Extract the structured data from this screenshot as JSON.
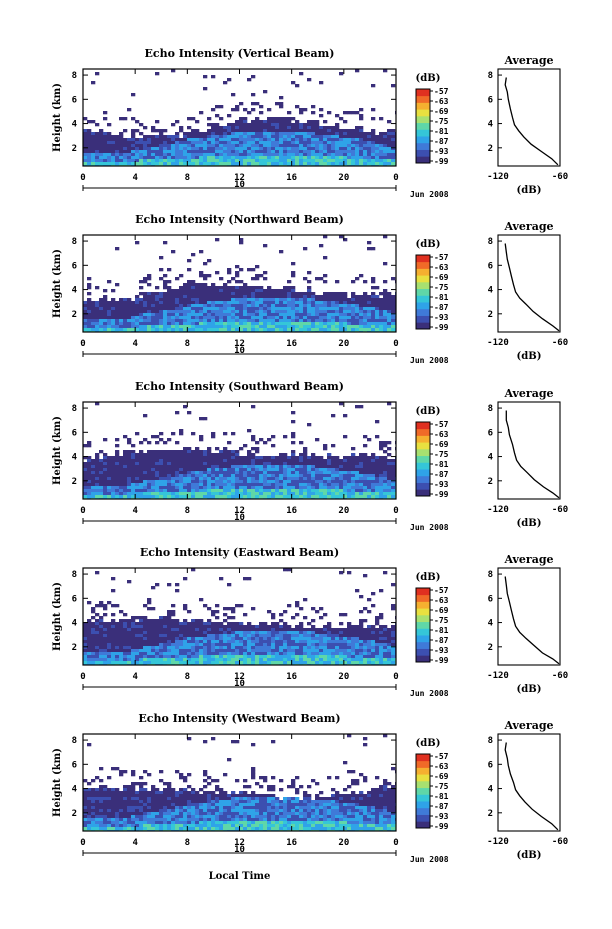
{
  "chart_data": {
    "type": "heatmap",
    "x_label": "Local Time",
    "date_label": "Jun 2008",
    "x_ticks": [
      "0",
      "4",
      "8",
      "12",
      "16",
      "20",
      "0"
    ],
    "day_tick": "10",
    "y_label": "Height (km)",
    "y_ticks": [
      "2",
      "4",
      "6",
      "8"
    ],
    "ylim": [
      0.5,
      8.5
    ],
    "colorbar_unit": "(dB)",
    "colorbar_ticks": [
      "-57",
      "-63",
      "-69",
      "-75",
      "-81",
      "-87",
      "-93",
      "-99"
    ],
    "colorbar_range": [
      -99,
      -57
    ],
    "colorbar_colors": [
      "#3a2f7a",
      "#3c4fb0",
      "#3f7ad8",
      "#2fa3e8",
      "#35c6d8",
      "#5fd7a8",
      "#a8e070",
      "#e8e040",
      "#f5b030",
      "#f06a28",
      "#e03020"
    ],
    "average_title": "Average",
    "average_xlabel": "(dB)",
    "average_xticks": [
      "-120",
      "-60"
    ],
    "average_xlim": [
      -120,
      -60
    ],
    "average_yticks": [
      "2",
      "4",
      "6",
      "8"
    ],
    "panels": [
      {
        "title": "Echo Intensity (Vertical Beam)",
        "ceiling_km": 3.8,
        "average_profile": [
          [
            -112,
            7.8
          ],
          [
            -113,
            7.2
          ],
          [
            -111,
            6.6
          ],
          [
            -110,
            6.0
          ],
          [
            -108,
            5.2
          ],
          [
            -106,
            4.5
          ],
          [
            -104,
            3.9
          ],
          [
            -100,
            3.4
          ],
          [
            -95,
            2.9
          ],
          [
            -88,
            2.3
          ],
          [
            -78,
            1.7
          ],
          [
            -68,
            1.1
          ],
          [
            -62,
            0.6
          ]
        ]
      },
      {
        "title": "Echo Intensity (Northward Beam)",
        "ceiling_km": 4.0,
        "average_profile": [
          [
            -113,
            7.8
          ],
          [
            -112,
            7.1
          ],
          [
            -111,
            6.5
          ],
          [
            -109,
            5.8
          ],
          [
            -107,
            5.1
          ],
          [
            -105,
            4.4
          ],
          [
            -103,
            3.8
          ],
          [
            -99,
            3.3
          ],
          [
            -93,
            2.8
          ],
          [
            -86,
            2.2
          ],
          [
            -77,
            1.6
          ],
          [
            -67,
            1.0
          ],
          [
            -61,
            0.6
          ]
        ]
      },
      {
        "title": "Echo Intensity (Southward Beam)",
        "ceiling_km": 4.3,
        "average_profile": [
          [
            -112,
            7.8
          ],
          [
            -112,
            7.0
          ],
          [
            -110,
            6.4
          ],
          [
            -109,
            5.8
          ],
          [
            -106,
            5.0
          ],
          [
            -104,
            4.3
          ],
          [
            -102,
            3.7
          ],
          [
            -98,
            3.2
          ],
          [
            -92,
            2.7
          ],
          [
            -85,
            2.1
          ],
          [
            -76,
            1.5
          ],
          [
            -67,
            1.0
          ],
          [
            -61,
            0.6
          ]
        ]
      },
      {
        "title": "Echo Intensity (Eastward Beam)",
        "ceiling_km": 4.1,
        "average_profile": [
          [
            -113,
            7.8
          ],
          [
            -112,
            7.1
          ],
          [
            -111,
            6.4
          ],
          [
            -109,
            5.7
          ],
          [
            -107,
            5.0
          ],
          [
            -105,
            4.3
          ],
          [
            -103,
            3.7
          ],
          [
            -99,
            3.2
          ],
          [
            -93,
            2.7
          ],
          [
            -85,
            2.1
          ],
          [
            -77,
            1.5
          ],
          [
            -67,
            1.0
          ],
          [
            -61,
            0.6
          ]
        ]
      },
      {
        "title": "Echo Intensity (Westward Beam)",
        "ceiling_km": 3.9,
        "average_profile": [
          [
            -112,
            7.8
          ],
          [
            -113,
            7.2
          ],
          [
            -111,
            6.5
          ],
          [
            -110,
            5.9
          ],
          [
            -108,
            5.2
          ],
          [
            -105,
            4.5
          ],
          [
            -103,
            3.9
          ],
          [
            -99,
            3.4
          ],
          [
            -94,
            2.9
          ],
          [
            -87,
            2.3
          ],
          [
            -78,
            1.7
          ],
          [
            -68,
            1.1
          ],
          [
            -62,
            0.6
          ]
        ]
      }
    ]
  }
}
